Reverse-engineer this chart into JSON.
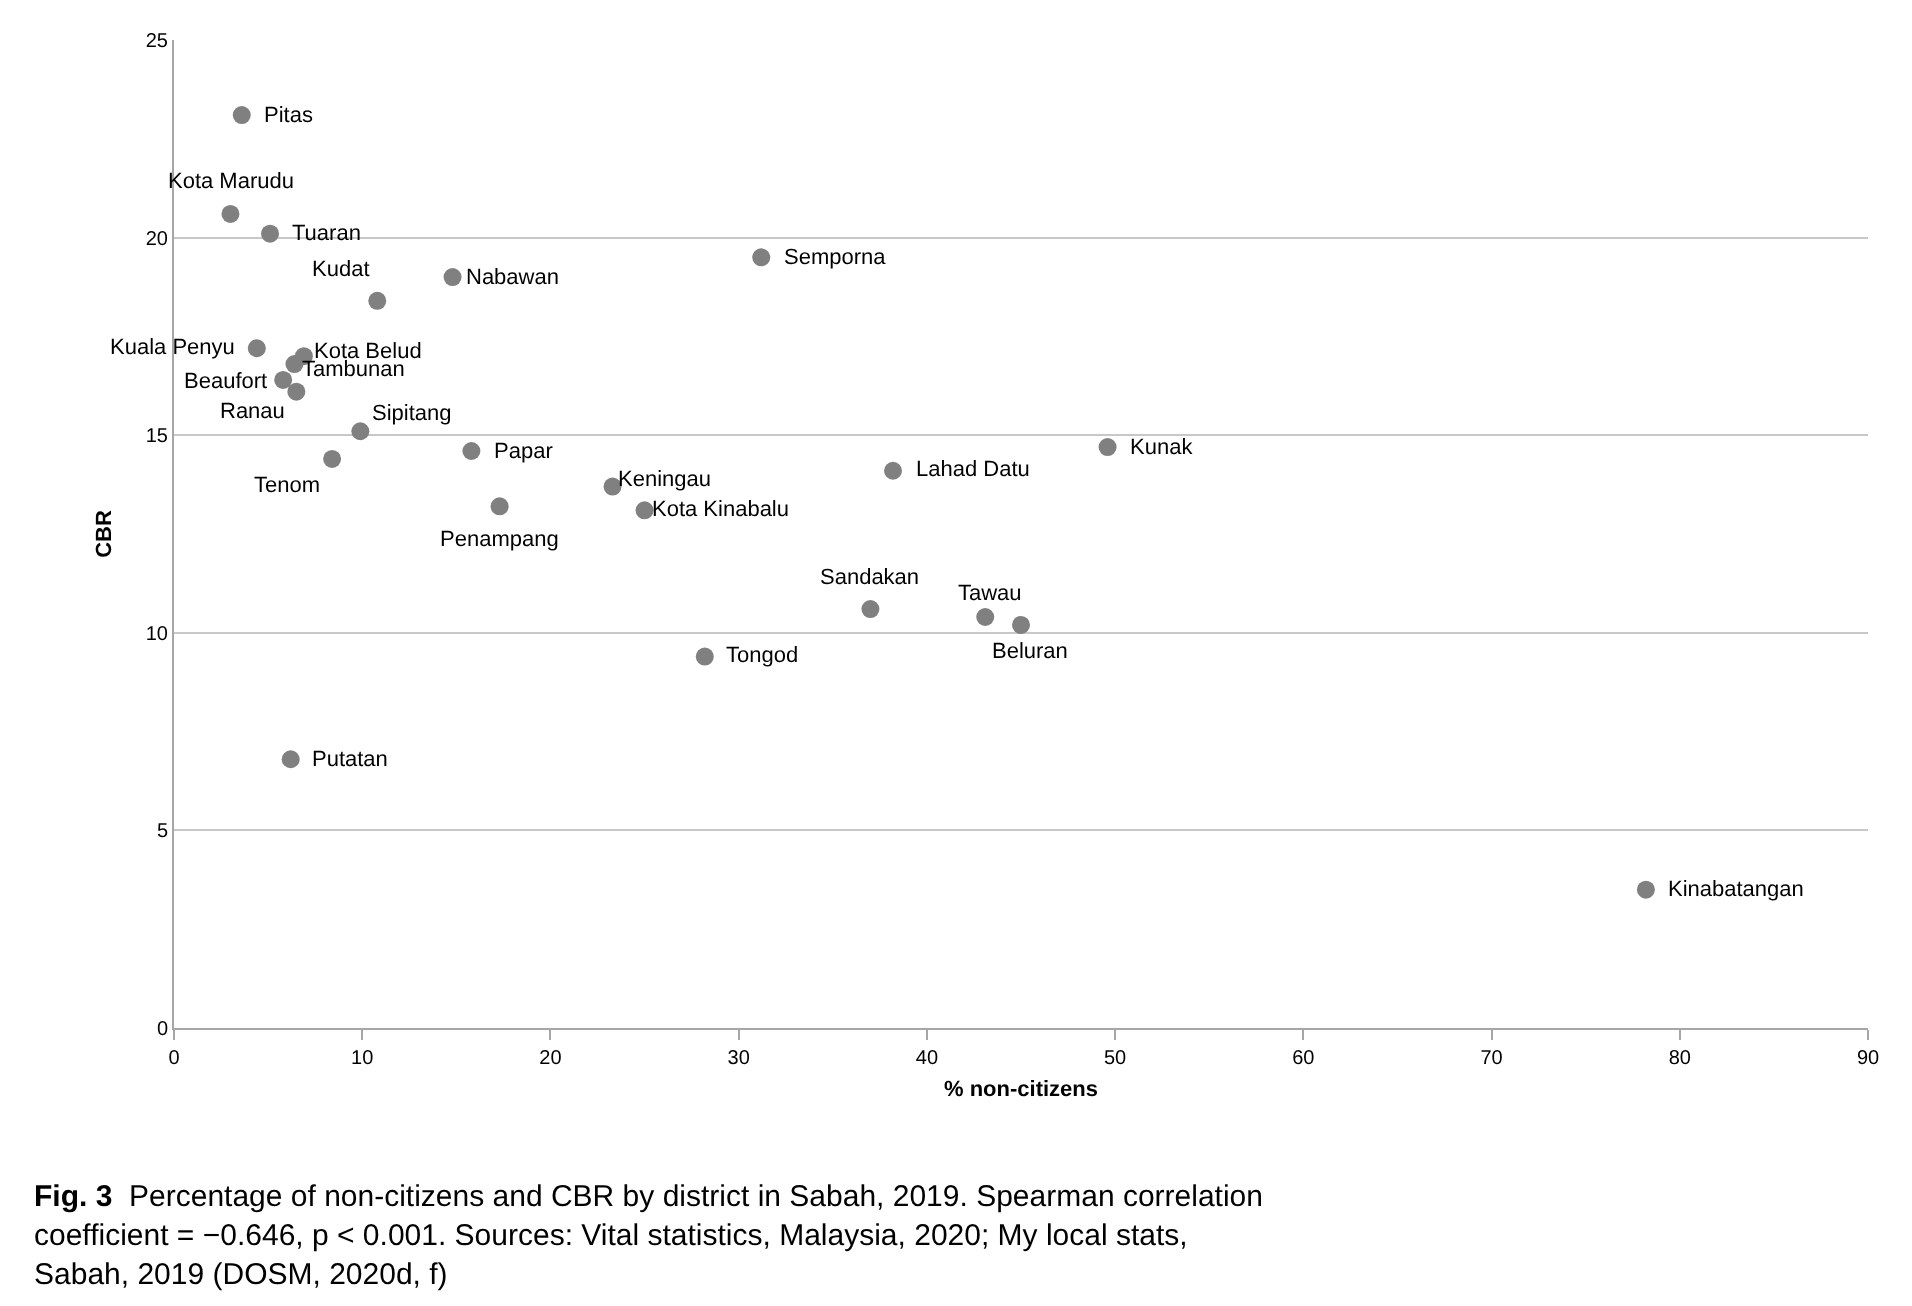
{
  "chart_data": {
    "type": "scatter",
    "xlabel": "% non-citizens",
    "ylabel": "CBR",
    "xlim": [
      0,
      90
    ],
    "xticks": [
      0,
      10,
      20,
      30,
      40,
      50,
      60,
      70,
      80,
      90
    ],
    "ylim": [
      0,
      25
    ],
    "yticks": [
      0,
      5,
      10,
      15,
      20,
      25
    ],
    "grid": "y",
    "marker": "circle",
    "series": [
      {
        "color": "#808080",
        "x": [
          3.6,
          3.0,
          5.1,
          10.8,
          14.8,
          31.2,
          4.4,
          6.9,
          6.4,
          5.8,
          6.5,
          9.9,
          15.8,
          8.4,
          17.3,
          23.3,
          25.0,
          38.2,
          49.6,
          37.0,
          43.1,
          45.0,
          28.2,
          6.2,
          78.2
        ],
        "values": [
          23.1,
          20.6,
          20.1,
          18.4,
          19.0,
          19.5,
          17.2,
          17.0,
          16.8,
          16.4,
          16.1,
          15.1,
          14.6,
          14.4,
          13.2,
          13.7,
          13.1,
          14.1,
          14.7,
          10.6,
          10.4,
          10.2,
          9.4,
          6.8,
          3.5
        ]
      }
    ],
    "annotations": [
      {
        "text": "Pitas",
        "x": 3.6,
        "y": 23.1
      },
      {
        "text": "Kota Marudu",
        "x": 3.0,
        "y": 20.6
      },
      {
        "text": "Tuaran",
        "x": 5.1,
        "y": 20.1
      },
      {
        "text": "Kudat",
        "x": 10.8,
        "y": 18.4
      },
      {
        "text": "Nabawan",
        "x": 14.8,
        "y": 19.0
      },
      {
        "text": "Semporna",
        "x": 31.2,
        "y": 19.5
      },
      {
        "text": "Kuala Penyu",
        "x": 4.4,
        "y": 17.2
      },
      {
        "text": "Kota Belud",
        "x": 6.9,
        "y": 17.0
      },
      {
        "text": "Tambunan",
        "x": 6.4,
        "y": 16.8
      },
      {
        "text": "Beaufort",
        "x": 5.8,
        "y": 16.4
      },
      {
        "text": "Ranau",
        "x": 6.5,
        "y": 16.1
      },
      {
        "text": "Sipitang",
        "x": 9.9,
        "y": 15.1
      },
      {
        "text": "Papar",
        "x": 15.8,
        "y": 14.6
      },
      {
        "text": "Tenom",
        "x": 8.4,
        "y": 14.4
      },
      {
        "text": "Penampang",
        "x": 17.3,
        "y": 13.2
      },
      {
        "text": "Keningau",
        "x": 23.3,
        "y": 13.7
      },
      {
        "text": "Kota Kinabalu",
        "x": 25.0,
        "y": 13.1
      },
      {
        "text": "Lahad Datu",
        "x": 38.2,
        "y": 14.1
      },
      {
        "text": "Kunak",
        "x": 49.6,
        "y": 14.7
      },
      {
        "text": "Sandakan",
        "x": 37.0,
        "y": 10.6
      },
      {
        "text": "Tawau",
        "x": 43.1,
        "y": 10.4
      },
      {
        "text": "Beluran",
        "x": 45.0,
        "y": 10.2
      },
      {
        "text": "Tongod",
        "x": 28.2,
        "y": 9.4
      },
      {
        "text": "Putatan",
        "x": 6.2,
        "y": 6.8
      },
      {
        "text": "Kinabatangan",
        "x": 78.2,
        "y": 3.5
      },
      "Fig. 3",
      "Percentage of non-citizens and CBR by district in Sabah, 2019. Spearman correlation coefficient = −0.646, p < 0.001. Sources: Vital statistics, Malaysia, 2020; My local stats, Sabah, 2019 (DOSM, 2020d, f)"
    ]
  }
}
